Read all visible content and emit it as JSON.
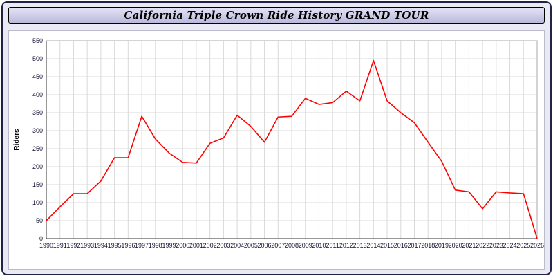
{
  "window": {
    "title": "California Triple Crown Ride History GRAND TOUR"
  },
  "chart_data": {
    "type": "line",
    "title": "California Triple Crown Ride History GRAND TOUR",
    "xlabel": "",
    "ylabel": "Riders",
    "ylim": [
      0,
      550
    ],
    "y_tick_step": 50,
    "grid": true,
    "legend_position": "none",
    "line_color": "#ff0000",
    "x": [
      1990,
      1991,
      1992,
      1993,
      1994,
      1995,
      1996,
      1997,
      1998,
      1999,
      2000,
      2001,
      2002,
      2003,
      2004,
      2005,
      2006,
      2007,
      2008,
      2009,
      2010,
      2011,
      2012,
      2013,
      2014,
      2015,
      2016,
      2017,
      2018,
      2019,
      2020,
      2021,
      2022,
      2023,
      2024,
      2025,
      2026
    ],
    "series": [
      {
        "name": "Riders",
        "values": [
          50,
          88,
          125,
          125,
          160,
          225,
          225,
          340,
          277,
          238,
          212,
          210,
          265,
          280,
          343,
          312,
          268,
          338,
          340,
          390,
          373,
          378,
          410,
          383,
          495,
          383,
          350,
          322,
          268,
          215,
          135,
          130,
          83,
          130,
          127,
          125,
          0
        ]
      }
    ]
  }
}
